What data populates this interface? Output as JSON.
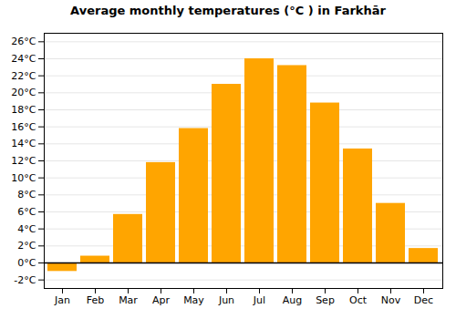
{
  "chart_data": {
    "type": "bar",
    "title": "Average monthly temperatures (°C ) in Farkhār",
    "categories": [
      "Jan",
      "Feb",
      "Mar",
      "Apr",
      "May",
      "Jun",
      "Jul",
      "Aug",
      "Sep",
      "Oct",
      "Nov",
      "Dec"
    ],
    "values": [
      -1.0,
      0.8,
      5.7,
      11.8,
      15.8,
      21.0,
      24.0,
      23.2,
      18.8,
      13.4,
      7.0,
      1.7
    ],
    "color": "#FFA500",
    "ylim": [
      -3,
      27
    ],
    "yticks": [
      {
        "value": -2,
        "label": "-2°C"
      },
      {
        "value": 0,
        "label": "0°C"
      },
      {
        "value": 2,
        "label": "2°C"
      },
      {
        "value": 4,
        "label": "4°C"
      },
      {
        "value": 6,
        "label": "6°C"
      },
      {
        "value": 8,
        "label": "8°C"
      },
      {
        "value": 10,
        "label": "10°C"
      },
      {
        "value": 12,
        "label": "12°C"
      },
      {
        "value": 14,
        "label": "14°C"
      },
      {
        "value": 16,
        "label": "16°C"
      },
      {
        "value": 18,
        "label": "18°C"
      },
      {
        "value": 20,
        "label": "20°C"
      },
      {
        "value": 22,
        "label": "22°C"
      },
      {
        "value": 24,
        "label": "24°C"
      },
      {
        "value": 26,
        "label": "26°C"
      }
    ],
    "grid": true
  }
}
